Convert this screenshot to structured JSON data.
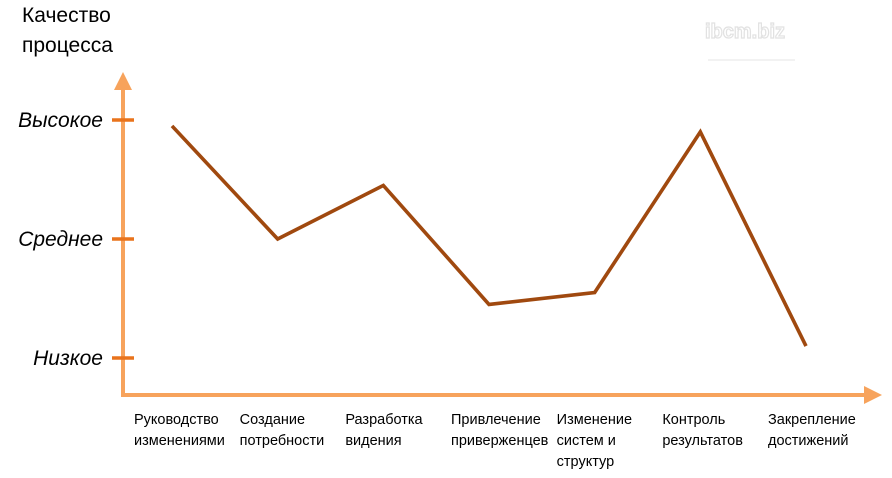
{
  "watermark": "ibcm.biz",
  "chart_data": {
    "type": "line",
    "title": "",
    "ylabel_lines": [
      "Качество",
      "процесса"
    ],
    "xlabel": "",
    "ylim": [
      0,
      2
    ],
    "y_ticks": [
      {
        "value": 0,
        "label": "Низкое"
      },
      {
        "value": 1,
        "label": "Среднее"
      },
      {
        "value": 2,
        "label": "Высокое"
      }
    ],
    "categories": [
      "Руководство изменениями",
      "Создание потребности",
      "Разработка видения",
      "Привлечение приверженцев",
      "Изменение систем и структур",
      "Контроль результатов",
      "Закрепление достижений"
    ],
    "category_lines": [
      [
        "Руководство",
        "изменениями"
      ],
      [
        "Создание",
        "потребности"
      ],
      [
        "Разработка",
        "видения"
      ],
      [
        "Привлечение",
        "приверженцев"
      ],
      [
        "Изменение",
        "систем и",
        "структур"
      ],
      [
        "Контроль",
        "результатов"
      ],
      [
        "Закрепление",
        "достижений"
      ]
    ],
    "series": [
      {
        "values": [
          1.95,
          1.0,
          1.45,
          0.45,
          0.55,
          1.9,
          0.1
        ]
      }
    ],
    "line_color": "#a0490f",
    "axis_color": "#f7a35c",
    "tick_color": "#e9731c",
    "grid": false
  }
}
